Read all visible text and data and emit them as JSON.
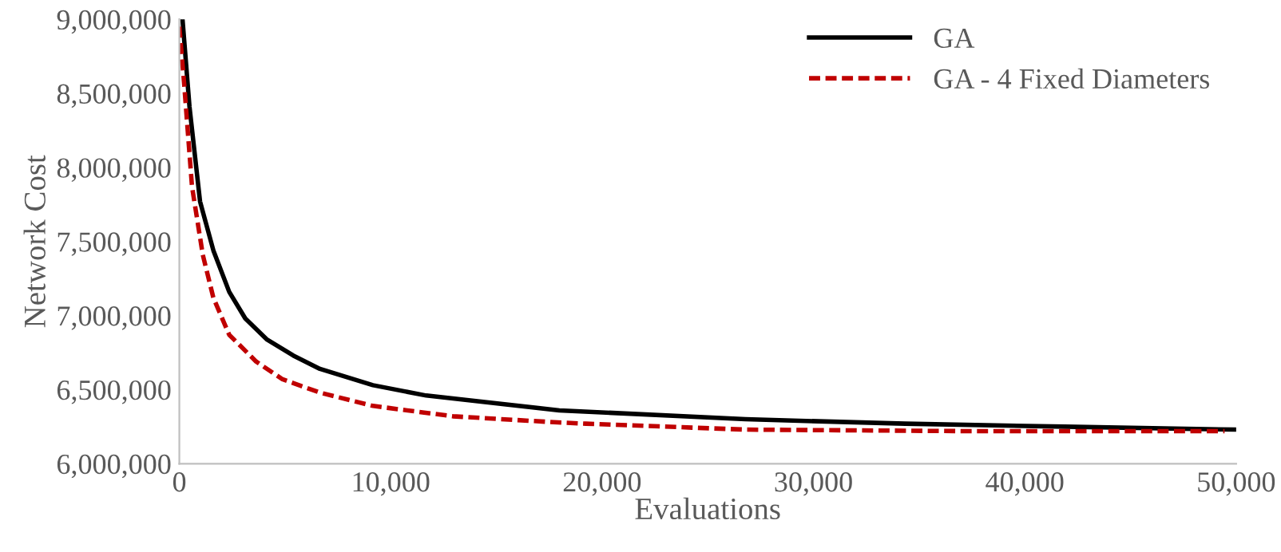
{
  "chart_data": {
    "type": "line",
    "xlabel": "Evaluations",
    "ylabel": "Network Cost",
    "xlim": [
      0,
      50000
    ],
    "ylim": [
      6000000,
      9000000
    ],
    "xticks": [
      0,
      {
        "value": 10000,
        "label": "10,000"
      },
      {
        "value": 20000,
        "label": "20,000"
      },
      {
        "value": 30000,
        "label": "30,000"
      },
      {
        "value": 40000,
        "label": "40,000"
      },
      {
        "value": 50000,
        "label": "50,000"
      }
    ],
    "yticks": [
      {
        "value": 6000000,
        "label": "6,000,000"
      },
      {
        "value": 6500000,
        "label": "6,500,000"
      },
      {
        "value": 7000000,
        "label": "7,000,000"
      },
      {
        "value": 7500000,
        "label": "7,500,000"
      },
      {
        "value": 8000000,
        "label": "8,000,000"
      },
      {
        "value": 8500000,
        "label": "8,500,000"
      },
      {
        "value": 9000000,
        "label": "9,000,000"
      }
    ],
    "grid": false,
    "legend": "top right",
    "series": [
      {
        "name": "GA",
        "color": "#000000",
        "line_style": "solid",
        "x": [
          150,
          480,
          980,
          1610,
          2360,
          3120,
          4130,
          5390,
          6650,
          9160,
          11680,
          14200,
          17980,
          26790,
          34340,
          41900,
          50000
        ],
        "values": [
          9000000,
          8410000,
          7770000,
          7440000,
          7160000,
          6980000,
          6840000,
          6730000,
          6640000,
          6530000,
          6460000,
          6420000,
          6360000,
          6300000,
          6270000,
          6250000,
          6230000
        ]
      },
      {
        "name": "GA - 4 Fixed Diameters",
        "color": "#c00000",
        "line_style": "dashed",
        "x": [
          0,
          230,
          600,
          1110,
          1610,
          2360,
          3630,
          4880,
          6650,
          9160,
          12940,
          17730,
          19230,
          26790,
          36860,
          49450
        ],
        "values": [
          8950000,
          8560000,
          7870000,
          7410000,
          7120000,
          6870000,
          6690000,
          6570000,
          6480000,
          6390000,
          6320000,
          6280000,
          6270000,
          6230000,
          6220000,
          6220000
        ]
      }
    ]
  }
}
